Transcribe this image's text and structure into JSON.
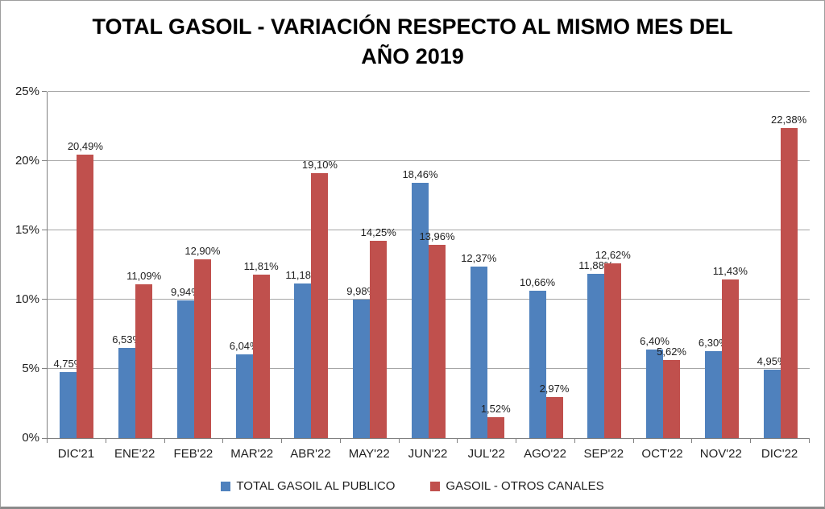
{
  "chart_data": {
    "type": "bar",
    "title": "TOTAL GASOIL - VARIACIÓN RESPECTO AL MISMO MES DEL AÑO 2019",
    "title_lines": [
      "TOTAL GASOIL - VARIACIÓN RESPECTO AL MISMO MES DEL",
      "AÑO 2019"
    ],
    "categories": [
      "DIC'21",
      "ENE'22",
      "FEB'22",
      "MAR'22",
      "ABR'22",
      "MAY'22",
      "JUN'22",
      "JUL'22",
      "AGO'22",
      "SEP'22",
      "OCT'22",
      "NOV'22",
      "DIC'22"
    ],
    "series": [
      {
        "name": "TOTAL GASOIL AL PUBLICO",
        "color": "#4F81BD",
        "values": [
          4.75,
          6.53,
          9.94,
          6.04,
          11.18,
          9.98,
          18.46,
          12.37,
          10.66,
          11.88,
          6.4,
          6.3,
          4.95
        ],
        "labels": [
          "4,75%",
          "6,53%",
          "9,94%",
          "6,04%",
          "11,18%",
          "9,98%",
          "18,46%",
          "12,37%",
          "10,66%",
          "11,88%",
          "6,40%",
          "6,30%",
          "4,95%"
        ]
      },
      {
        "name": "GASOIL - OTROS CANALES",
        "color": "#C0504D",
        "values": [
          20.49,
          11.09,
          12.9,
          11.81,
          19.1,
          14.25,
          13.96,
          1.52,
          2.97,
          12.62,
          5.62,
          11.43,
          22.38
        ],
        "labels": [
          "20,49%",
          "11,09%",
          "12,90%",
          "11,81%",
          "19,10%",
          "14,25%",
          "13,96%",
          "1,52%",
          "2,97%",
          "12,62%",
          "5,62%",
          "11,43%",
          "22,38%"
        ]
      }
    ],
    "ylim": [
      0,
      25
    ],
    "ytick_values": [
      0,
      5,
      10,
      15,
      20,
      25
    ],
    "ytick_labels": [
      "0%",
      "5%",
      "10%",
      "15%",
      "20%",
      "25%"
    ],
    "grid": true,
    "legend_position": "bottom",
    "colors": {
      "gridline": "#a6a6a6",
      "axis": "#808080",
      "text": "#1f1f1f",
      "background": "#ffffff"
    }
  }
}
